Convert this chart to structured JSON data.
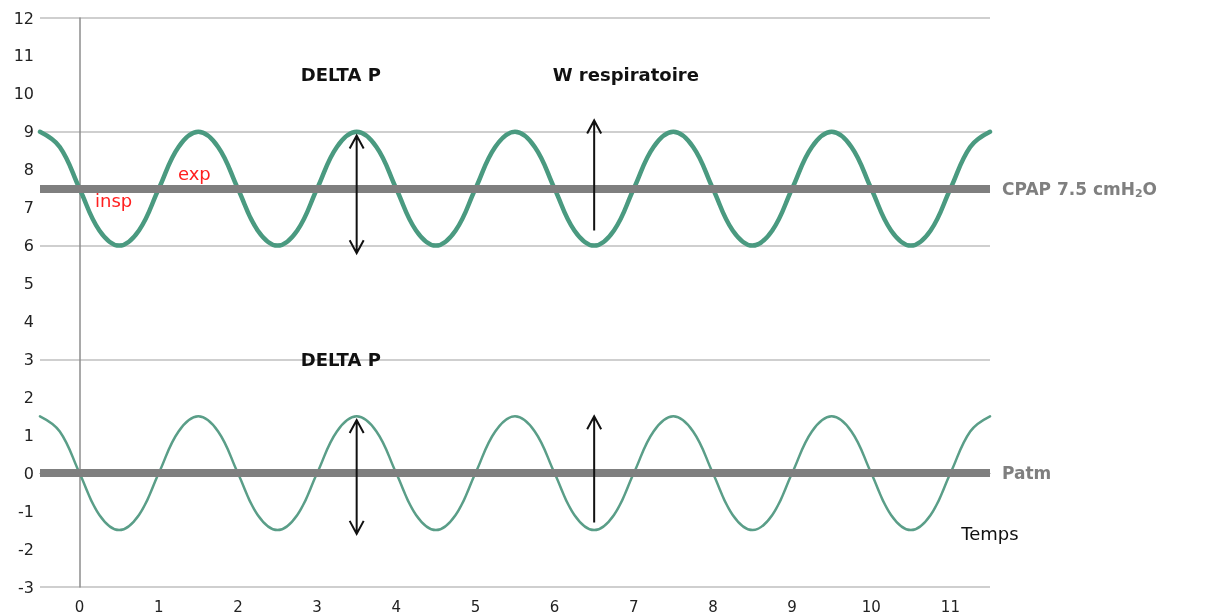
{
  "chart_data": {
    "type": "line",
    "x": [
      -0.5,
      -0.25,
      0,
      0.25,
      0.5,
      0.75,
      1,
      1.25,
      1.5,
      1.75,
      2,
      2.25,
      2.5,
      2.75,
      3,
      3.25,
      3.5,
      3.75,
      4,
      4.25,
      4.5,
      4.75,
      5,
      5.25,
      5.5,
      5.75,
      6,
      6.25,
      6.5,
      6.75,
      7,
      7.25,
      7.5,
      7.75,
      8,
      8.25,
      8.5,
      8.75,
      9,
      9.25,
      9.5,
      9.75,
      10,
      10.25,
      10.5,
      10.75,
      11,
      11.25,
      11.5
    ],
    "series": [
      {
        "color": "#4a9a80",
        "values": [
          9,
          8.6,
          7.5,
          6.4,
          6,
          6.4,
          7.5,
          8.6,
          9,
          8.6,
          7.5,
          6.4,
          6,
          6.4,
          7.5,
          8.6,
          9,
          8.6,
          7.5,
          6.4,
          6,
          6.4,
          7.5,
          8.6,
          9,
          8.6,
          7.5,
          6.4,
          6,
          6.4,
          7.5,
          8.6,
          9,
          8.6,
          7.5,
          6.4,
          6,
          6.4,
          7.5,
          8.6,
          9,
          8.6,
          7.5,
          6.4,
          6,
          6.4,
          7.5,
          8.6,
          9
        ]
      },
      {
        "color": "#5a9e88",
        "values": [
          1.5,
          1.1,
          0,
          -1.1,
          -1.5,
          -1.1,
          0,
          1.1,
          1.5,
          1.1,
          0,
          -1.1,
          -1.5,
          -1.1,
          0,
          1.1,
          1.5,
          1.1,
          0,
          -1.1,
          -1.5,
          -1.1,
          0,
          1.1,
          1.5,
          1.1,
          0,
          -1.1,
          -1.5,
          -1.1,
          0,
          1.1,
          1.5,
          1.1,
          0,
          -1.1,
          -1.5,
          -1.1,
          0,
          1.1,
          1.5,
          1.1,
          0,
          -1.1,
          -1.5,
          -1.1,
          0,
          1.1,
          1.5
        ]
      }
    ],
    "xlim": [
      -0.5,
      11.5
    ],
    "xticks": [
      0,
      1,
      2,
      3,
      4,
      5,
      6,
      7,
      8,
      9,
      10,
      11
    ],
    "ylim": [
      -3,
      12
    ],
    "yticks": [
      -3,
      -2,
      -1,
      0,
      1,
      2,
      3,
      4,
      5,
      6,
      7,
      8,
      9,
      10,
      11,
      12
    ],
    "ref_lines": [
      {
        "axis": "y",
        "value": 7.5,
        "label": "CPAP 7.5 cmH$_{2}$O",
        "color": "#7f7f7f"
      },
      {
        "axis": "y",
        "value": 0,
        "label": "Patm",
        "color": "#7f7f7f"
      }
    ],
    "annotations": [
      "DELTA P",
      "W respiratoire",
      "DELTA P",
      "exp",
      "insp",
      "Temps"
    ],
    "grid": "y",
    "marker": "none",
    "line_style": "solid"
  }
}
